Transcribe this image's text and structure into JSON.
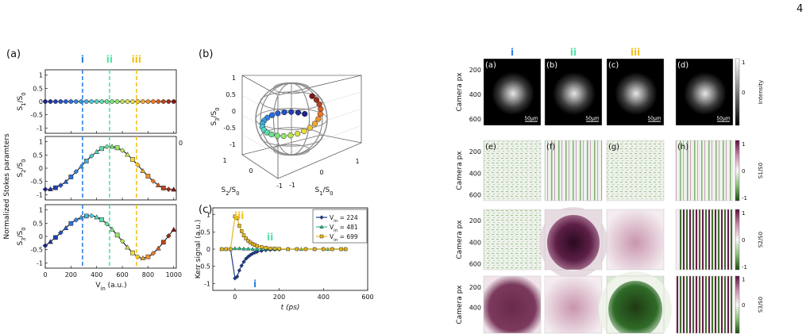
{
  "page_number": "4",
  "panel_labels": {
    "a": "(a)",
    "b": "(b)",
    "c": "(c)"
  },
  "markers": [
    {
      "label": "i",
      "x": 290,
      "color": "#2f7fe8"
    },
    {
      "label": "ii",
      "x": 500,
      "color": "#52e3a8"
    },
    {
      "label": "iii",
      "x": 710,
      "color": "#f2c21a"
    }
  ],
  "chart_data": [
    {
      "type": "line",
      "id": "stokes",
      "ylabel_shared": "Normalized Stokes paramters",
      "xlabel": "V_in (a.u.)",
      "x_ticks": [
        0,
        200,
        400,
        600,
        800,
        1000
      ],
      "xlim": [
        0,
        1020
      ],
      "x": [
        0,
        20,
        40,
        60,
        80,
        100,
        120,
        140,
        160,
        180,
        200,
        220,
        240,
        260,
        280,
        300,
        320,
        340,
        360,
        380,
        400,
        420,
        440,
        460,
        480,
        500,
        520,
        540,
        560,
        580,
        600,
        620,
        640,
        660,
        680,
        700,
        720,
        740,
        760,
        780,
        800,
        820,
        840,
        860,
        880,
        900,
        920,
        940,
        960,
        980,
        1000
      ],
      "subplots": [
        {
          "ylabel": "S_1/S_0",
          "ylim": [
            -1.2,
            1.2
          ],
          "y_ticks": [
            -1,
            -0.5,
            0,
            0.5,
            1
          ],
          "y": [
            0,
            0,
            0,
            0,
            0,
            0,
            0,
            0,
            0,
            0,
            0,
            0,
            0,
            0,
            0,
            0,
            0,
            0,
            0,
            0,
            0,
            0,
            0,
            0,
            0,
            0,
            0,
            0,
            0,
            0,
            0,
            0,
            0,
            0,
            0,
            0,
            0,
            0,
            0,
            0,
            0,
            0,
            0,
            0,
            0,
            0,
            0,
            0,
            0,
            0,
            0
          ]
        },
        {
          "ylabel": "S_2/S_0",
          "ylim": [
            -1.2,
            1.2
          ],
          "y_ticks": [
            -1,
            -0.5,
            0,
            0.5,
            1
          ],
          "y": [
            -0.8,
            -0.8,
            -0.79,
            -0.77,
            -0.74,
            -0.7,
            -0.65,
            -0.58,
            -0.51,
            -0.42,
            -0.33,
            -0.23,
            -0.13,
            -0.03,
            0.07,
            0.17,
            0.27,
            0.37,
            0.46,
            0.54,
            0.62,
            0.68,
            0.74,
            0.78,
            0.81,
            0.82,
            0.82,
            0.8,
            0.77,
            0.73,
            0.67,
            0.6,
            0.52,
            0.42,
            0.33,
            0.22,
            0.12,
            0.01,
            -0.1,
            -0.2,
            -0.3,
            -0.4,
            -0.49,
            -0.57,
            -0.64,
            -0.7,
            -0.75,
            -0.78,
            -0.8,
            -0.8,
            -0.8
          ]
        },
        {
          "ylabel": "S_3/S_0",
          "ylim": [
            -1.2,
            1.2
          ],
          "y_ticks": [
            -1,
            -0.5,
            0,
            0.5,
            1
          ],
          "y": [
            -0.35,
            -0.28,
            -0.2,
            -0.12,
            -0.04,
            0.05,
            0.14,
            0.23,
            0.32,
            0.41,
            0.49,
            0.56,
            0.62,
            0.68,
            0.72,
            0.75,
            0.77,
            0.78,
            0.78,
            0.76,
            0.73,
            0.69,
            0.63,
            0.56,
            0.47,
            0.38,
            0.27,
            0.16,
            0.05,
            -0.07,
            -0.18,
            -0.3,
            -0.41,
            -0.52,
            -0.62,
            -0.7,
            -0.77,
            -0.81,
            -0.82,
            -0.8,
            -0.77,
            -0.72,
            -0.64,
            -0.55,
            -0.45,
            -0.34,
            -0.22,
            -0.1,
            0.02,
            0.14,
            0.26
          ]
        }
      ]
    },
    {
      "type": "scatter",
      "id": "poincare",
      "zlabel": "S_3/S_0",
      "xlabel": "S_1/S_0",
      "ylabel": "S_2/S_0",
      "z_ticks": [
        -1,
        -0.5,
        0,
        0.5,
        1
      ],
      "x_ticks": [
        1,
        0,
        -1
      ],
      "y_ticks": [
        1,
        0,
        -1
      ]
    },
    {
      "type": "line",
      "id": "kerr",
      "xlabel": "t (ps)",
      "ylabel": "Kerr signal (a.u.)",
      "xlim": [
        -100,
        600
      ],
      "ylim": [
        -1.2,
        1.2
      ],
      "x_ticks": [
        0,
        200,
        400,
        600
      ],
      "y_ticks": [
        -1,
        -0.5,
        0,
        0.5,
        1
      ],
      "legend_position": "top-right",
      "series": [
        {
          "name": "V_in = 224",
          "color": "#1f3d8c",
          "marker": "diamond",
          "x": [
            -60,
            -40,
            -20,
            0,
            10,
            20,
            30,
            40,
            50,
            60,
            70,
            80,
            90,
            100,
            120,
            140,
            160,
            180,
            200,
            240,
            280,
            320,
            360,
            400,
            440,
            480,
            500
          ],
          "y": [
            0,
            0,
            0,
            -0.85,
            -0.8,
            -0.62,
            -0.48,
            -0.37,
            -0.28,
            -0.22,
            -0.17,
            -0.13,
            -0.1,
            -0.08,
            -0.05,
            -0.03,
            -0.02,
            -0.01,
            -0.01,
            0,
            0,
            0,
            0,
            0,
            0,
            0,
            0
          ]
        },
        {
          "name": "V_in = 481",
          "color": "#2fbf8c",
          "marker": "triangle",
          "x": [
            -60,
            -40,
            -20,
            0,
            20,
            40,
            60,
            80,
            100,
            140,
            180,
            240,
            300,
            360,
            420,
            500
          ],
          "y": [
            0,
            0,
            0,
            0.02,
            0.02,
            0.01,
            0.01,
            0,
            0,
            0,
            0,
            0,
            0,
            0,
            0,
            0
          ]
        },
        {
          "name": "V_in = 699",
          "color": "#e8b820",
          "marker": "square",
          "x": [
            -60,
            -40,
            -20,
            0,
            10,
            20,
            30,
            40,
            50,
            60,
            70,
            80,
            90,
            100,
            120,
            140,
            160,
            180,
            200,
            240,
            280,
            320,
            360,
            400,
            440,
            480,
            500
          ],
          "y": [
            0,
            0,
            0,
            0.95,
            0.9,
            0.68,
            0.52,
            0.4,
            0.31,
            0.24,
            0.19,
            0.15,
            0.12,
            0.09,
            0.06,
            0.04,
            0.02,
            0.02,
            0.01,
            0,
            0,
            0,
            0,
            0,
            0,
            0,
            0
          ]
        }
      ]
    }
  ],
  "images": {
    "column_labels": [
      "i",
      "ii",
      "iii"
    ],
    "column_label_colors": [
      "#2f7fe8",
      "#52e3a8",
      "#f2c21a"
    ],
    "panel_letters": [
      "(a)",
      "(b)",
      "(c)",
      "(d)",
      "(e)",
      "(f)",
      "(g)",
      "(h)"
    ],
    "row_ylabel": "Camera px",
    "row_ticks": [
      [
        "200",
        "400",
        "600"
      ],
      [
        "200",
        "400",
        "600"
      ],
      [
        "200",
        "400",
        "600"
      ],
      [
        "200",
        "400"
      ]
    ],
    "scale_bar": "50μm",
    "colorbars": [
      {
        "label": "Intensity",
        "ticks": [
          "1",
          "0"
        ]
      },
      {
        "label": "S1/S0",
        "ticks": [
          "1",
          "0",
          "-1"
        ]
      },
      {
        "label": "S2/S0",
        "ticks": [
          "1",
          "0",
          "-1"
        ]
      },
      {
        "label": "S3/S0",
        "ticks": [
          "1",
          "0"
        ]
      }
    ]
  }
}
